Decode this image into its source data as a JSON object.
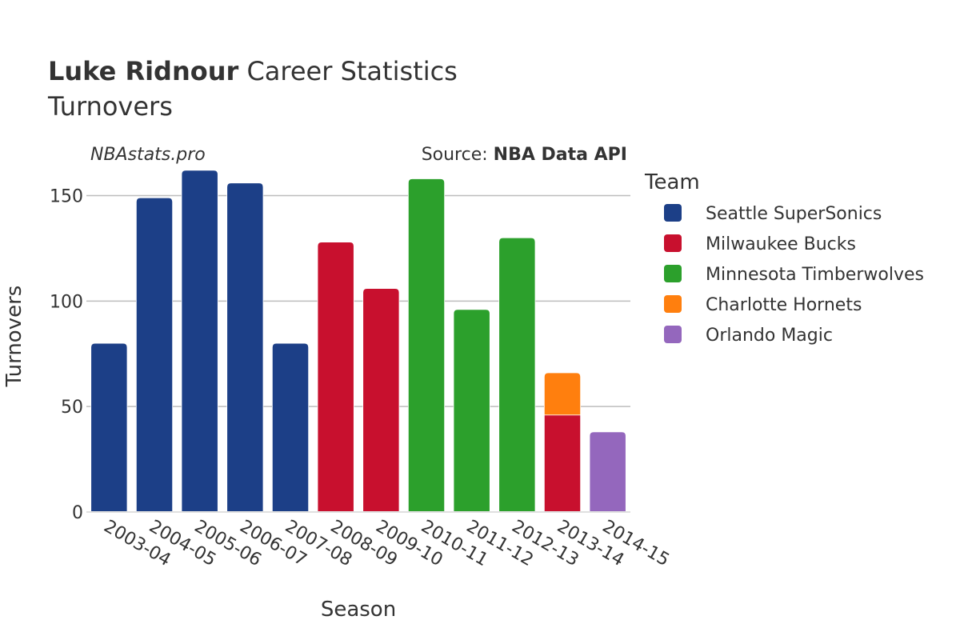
{
  "chart_data": {
    "type": "bar",
    "barmode": "stack",
    "title": {
      "bold": "Luke Ridnour",
      "rest": "Career Statistics",
      "subtitle": "Turnovers"
    },
    "watermark": "NBAstats.pro",
    "source": {
      "prefix": "Source: ",
      "name": "NBA Data API"
    },
    "xlabel": "Season",
    "ylabel": "Turnovers",
    "ylim": [
      0,
      165
    ],
    "yticks": [
      0,
      50,
      100,
      150
    ],
    "grid": true,
    "legend": {
      "title": "Team",
      "placement": "right"
    },
    "categories": [
      "2003-04",
      "2004-05",
      "2005-06",
      "2006-07",
      "2007-08",
      "2008-09",
      "2009-10",
      "2010-11",
      "2011-12",
      "2012-13",
      "2013-14",
      "2014-15"
    ],
    "series": [
      {
        "name": "Seattle SuperSonics",
        "color": "#1c3f87",
        "values": [
          80,
          149,
          162,
          156,
          80,
          0,
          0,
          0,
          0,
          0,
          0,
          0
        ]
      },
      {
        "name": "Milwaukee Bucks",
        "color": "#c8102e",
        "values": [
          0,
          0,
          0,
          0,
          0,
          128,
          106,
          0,
          0,
          0,
          46,
          0
        ]
      },
      {
        "name": "Minnesota Timberwolves",
        "color": "#2ca02c",
        "values": [
          0,
          0,
          0,
          0,
          0,
          0,
          0,
          158,
          96,
          130,
          0,
          0
        ]
      },
      {
        "name": "Charlotte Hornets",
        "color": "#ff7f0e",
        "values": [
          0,
          0,
          0,
          0,
          0,
          0,
          0,
          0,
          0,
          0,
          20,
          0
        ]
      },
      {
        "name": "Orlando Magic",
        "color": "#9467bd",
        "values": [
          0,
          0,
          0,
          0,
          0,
          0,
          0,
          0,
          0,
          0,
          0,
          38
        ]
      }
    ]
  }
}
